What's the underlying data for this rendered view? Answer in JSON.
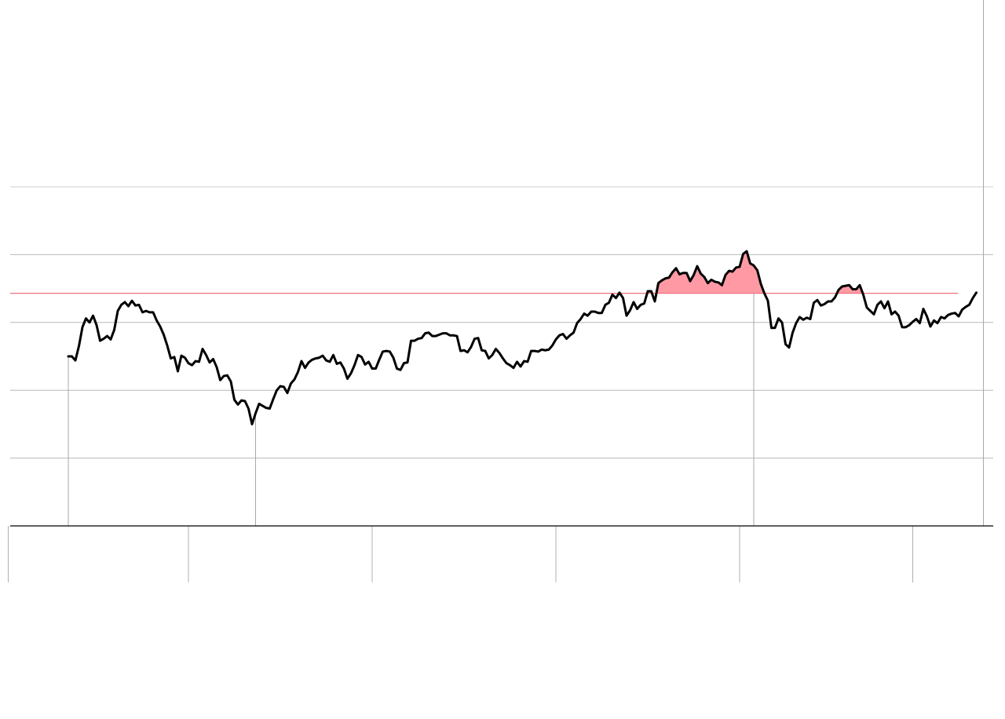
{
  "chart_data": {
    "type": "area",
    "title": "",
    "xlabel": "",
    "ylabel": "",
    "grid": true,
    "legend": "none",
    "ylim": [
      0,
      5
    ],
    "gridlines": [
      1,
      2,
      3,
      4,
      5
    ],
    "reference_level": 3.43,
    "fill_above_reference": true,
    "colors": {
      "line": "#000000",
      "reference": "#f0707e",
      "fill": "#ff9aa5",
      "grid": "#b8b8b8",
      "axis": "#000000"
    },
    "x_range": [
      0,
      260
    ],
    "x_ticks": [
      -17,
      34,
      86,
      138,
      190,
      239
    ],
    "markers": [
      0,
      53,
      194,
      259
    ],
    "series": [
      {
        "values": [
          2.5,
          2.5,
          2.44,
          2.65,
          2.93,
          3.06,
          3.0,
          3.1,
          2.96,
          2.73,
          2.76,
          2.8,
          2.75,
          2.89,
          3.17,
          3.26,
          3.3,
          3.24,
          3.32,
          3.25,
          3.26,
          3.15,
          3.17,
          3.15,
          3.15,
          3.03,
          2.94,
          2.82,
          2.66,
          2.47,
          2.49,
          2.28,
          2.51,
          2.48,
          2.4,
          2.37,
          2.43,
          2.42,
          2.61,
          2.52,
          2.41,
          2.46,
          2.34,
          2.15,
          2.21,
          2.22,
          2.13,
          1.86,
          1.79,
          1.85,
          1.84,
          1.73,
          1.5,
          1.66,
          1.8,
          1.77,
          1.74,
          1.73,
          1.87,
          2.0,
          2.06,
          2.05,
          1.96,
          2.1,
          2.16,
          2.27,
          2.43,
          2.33,
          2.41,
          2.45,
          2.47,
          2.48,
          2.51,
          2.44,
          2.42,
          2.52,
          2.39,
          2.41,
          2.32,
          2.17,
          2.25,
          2.37,
          2.52,
          2.49,
          2.38,
          2.42,
          2.32,
          2.32,
          2.45,
          2.57,
          2.58,
          2.57,
          2.48,
          2.32,
          2.3,
          2.4,
          2.41,
          2.73,
          2.73,
          2.76,
          2.77,
          2.84,
          2.85,
          2.8,
          2.8,
          2.82,
          2.84,
          2.84,
          2.81,
          2.81,
          2.8,
          2.58,
          2.59,
          2.56,
          2.64,
          2.76,
          2.77,
          2.59,
          2.58,
          2.47,
          2.52,
          2.61,
          2.55,
          2.47,
          2.4,
          2.37,
          2.33,
          2.42,
          2.35,
          2.43,
          2.42,
          2.58,
          2.58,
          2.57,
          2.6,
          2.59,
          2.6,
          2.66,
          2.75,
          2.81,
          2.83,
          2.76,
          2.81,
          2.85,
          2.99,
          3.05,
          3.13,
          3.1,
          3.16,
          3.16,
          3.14,
          3.14,
          3.26,
          3.29,
          3.41,
          3.36,
          3.44,
          3.36,
          3.1,
          3.18,
          3.3,
          3.2,
          3.26,
          3.28,
          3.46,
          3.46,
          3.31,
          3.58,
          3.62,
          3.65,
          3.66,
          3.74,
          3.8,
          3.71,
          3.73,
          3.73,
          3.61,
          3.7,
          3.83,
          3.72,
          3.67,
          3.58,
          3.63,
          3.6,
          3.59,
          3.55,
          3.7,
          3.76,
          3.75,
          3.81,
          3.82,
          4.01,
          4.05,
          3.87,
          3.84,
          3.77,
          3.57,
          3.43,
          3.32,
          2.92,
          2.92,
          3.06,
          3.0,
          2.68,
          2.63,
          2.85,
          2.99,
          3.08,
          3.04,
          3.07,
          3.05,
          3.29,
          3.33,
          3.25,
          3.27,
          3.31,
          3.31,
          3.37,
          3.48,
          3.53,
          3.54,
          3.55,
          3.49,
          3.49,
          3.55,
          3.41,
          3.22,
          3.17,
          3.12,
          3.26,
          3.31,
          3.21,
          3.31,
          3.12,
          3.16,
          3.1,
          2.93,
          2.93,
          2.96,
          3.01,
          3.05,
          2.99,
          3.2,
          3.09,
          2.94,
          3.03,
          2.99,
          3.08,
          3.06,
          3.11,
          3.13,
          3.14,
          3.09,
          3.19,
          3.23,
          3.26,
          3.36,
          3.44
        ]
      }
    ]
  }
}
